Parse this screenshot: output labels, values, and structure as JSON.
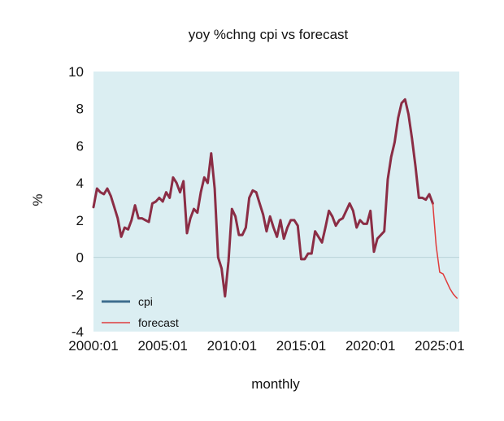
{
  "chart_data": {
    "type": "line",
    "title": "yoy %chng cpi vs forecast",
    "xlabel": "monthly",
    "ylabel": "%",
    "ylim": [
      -4,
      10
    ],
    "yticks": [
      -4,
      -2,
      0,
      2,
      4,
      6,
      8,
      10
    ],
    "xlim": [
      "2000:01",
      "2026:06"
    ],
    "xtick_labels": [
      "2000:01",
      "2005:01",
      "2010:01",
      "2015:01",
      "2020:01",
      "2025:01"
    ],
    "grid": false,
    "zero_line": true,
    "legend_position": "bottom-left",
    "colors": {
      "plot_background": "#dbeef2",
      "cpi_line": "#8b2d45",
      "forecast_line": "#e03c3c",
      "cpi_legend": "#3e6d8e",
      "forecast_legend": "#e03c3c"
    },
    "series": [
      {
        "name": "cpi",
        "x": [
          "2000:01",
          "2000:04",
          "2000:07",
          "2000:10",
          "2001:01",
          "2001:04",
          "2001:07",
          "2001:10",
          "2002:01",
          "2002:04",
          "2002:07",
          "2002:10",
          "2003:01",
          "2003:04",
          "2003:07",
          "2003:10",
          "2004:01",
          "2004:04",
          "2004:07",
          "2004:10",
          "2005:01",
          "2005:04",
          "2005:07",
          "2005:10",
          "2006:01",
          "2006:04",
          "2006:07",
          "2006:10",
          "2007:01",
          "2007:04",
          "2007:07",
          "2007:10",
          "2008:01",
          "2008:04",
          "2008:07",
          "2008:10",
          "2009:01",
          "2009:04",
          "2009:07",
          "2009:10",
          "2010:01",
          "2010:04",
          "2010:07",
          "2010:10",
          "2011:01",
          "2011:04",
          "2011:07",
          "2011:10",
          "2012:01",
          "2012:04",
          "2012:07",
          "2012:10",
          "2013:01",
          "2013:04",
          "2013:07",
          "2013:10",
          "2014:01",
          "2014:04",
          "2014:07",
          "2014:10",
          "2015:01",
          "2015:04",
          "2015:07",
          "2015:10",
          "2016:01",
          "2016:04",
          "2016:07",
          "2016:10",
          "2017:01",
          "2017:04",
          "2017:07",
          "2017:10",
          "2018:01",
          "2018:04",
          "2018:07",
          "2018:10",
          "2019:01",
          "2019:04",
          "2019:07",
          "2019:10",
          "2020:01",
          "2020:04",
          "2020:07",
          "2020:10",
          "2021:01",
          "2021:04",
          "2021:07",
          "2021:10",
          "2022:01",
          "2022:04",
          "2022:07",
          "2022:10",
          "2023:01",
          "2023:04",
          "2023:07",
          "2023:10",
          "2024:01",
          "2024:04",
          "2024:07"
        ],
        "y": [
          2.7,
          3.7,
          3.5,
          3.4,
          3.7,
          3.3,
          2.7,
          2.1,
          1.1,
          1.6,
          1.5,
          2.0,
          2.8,
          2.1,
          2.1,
          2.0,
          1.9,
          2.9,
          3.0,
          3.2,
          3.0,
          3.5,
          3.2,
          4.3,
          4.0,
          3.5,
          4.1,
          1.3,
          2.1,
          2.6,
          2.4,
          3.5,
          4.3,
          4.0,
          5.6,
          3.7,
          0.0,
          -0.6,
          -2.1,
          -0.2,
          2.6,
          2.2,
          1.2,
          1.2,
          1.6,
          3.2,
          3.6,
          3.5,
          2.9,
          2.3,
          1.4,
          2.2,
          1.6,
          1.1,
          2.0,
          1.0,
          1.6,
          2.0,
          2.0,
          1.7,
          -0.1,
          -0.1,
          0.2,
          0.2,
          1.4,
          1.1,
          0.8,
          1.6,
          2.5,
          2.2,
          1.7,
          2.0,
          2.1,
          2.5,
          2.9,
          2.5,
          1.6,
          2.0,
          1.8,
          1.8,
          2.5,
          0.3,
          1.0,
          1.2,
          1.4,
          4.2,
          5.4,
          6.2,
          7.5,
          8.3,
          8.5,
          7.7,
          6.4,
          4.9,
          3.2,
          3.2,
          3.1,
          3.4,
          2.9
        ]
      },
      {
        "name": "forecast",
        "x": [
          "2024:07",
          "2024:10",
          "2025:01",
          "2025:04",
          "2025:07",
          "2025:10",
          "2026:01",
          "2026:04"
        ],
        "y": [
          2.9,
          0.6,
          -0.8,
          -0.9,
          -1.3,
          -1.7,
          -2.0,
          -2.2
        ]
      }
    ]
  }
}
